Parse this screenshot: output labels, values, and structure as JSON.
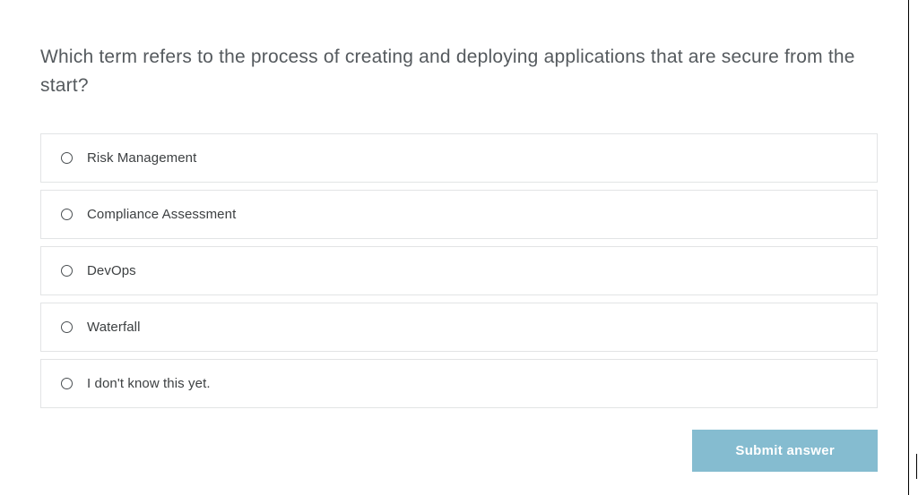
{
  "question": {
    "text": "Which term refers to the process of creating and deploying applications that are secure from the start?"
  },
  "options": [
    {
      "label": "Risk Management"
    },
    {
      "label": "Compliance Assessment"
    },
    {
      "label": "DevOps"
    },
    {
      "label": "Waterfall"
    },
    {
      "label": "I don't know this yet."
    }
  ],
  "submit": {
    "label": "Submit answer"
  },
  "colors": {
    "option_border": "#e2e4e5",
    "text_primary": "#555a5e",
    "text_option": "#3d4042",
    "radio_border": "#4a4f52",
    "submit_bg": "#85bcd0",
    "submit_text": "#ffffff",
    "background": "#ffffff"
  }
}
